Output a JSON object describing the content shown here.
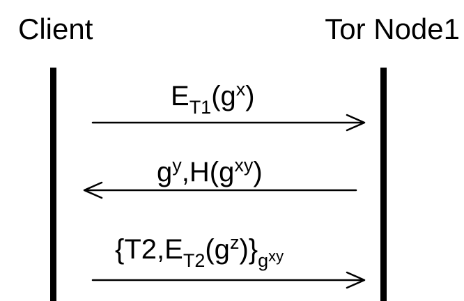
{
  "participants": {
    "client": "Client",
    "node": "Tor Node1"
  },
  "messages": [
    {
      "direction": "client-to-node",
      "parts": {
        "a": "E",
        "a_sub": "T1",
        "b": "(g",
        "b_sup": "x",
        "c": ")"
      }
    },
    {
      "direction": "node-to-client",
      "parts": {
        "a": "g",
        "a_sup": "y",
        "b": ",H(g",
        "b_sup": "xy",
        "c": ")"
      }
    },
    {
      "direction": "client-to-node",
      "parts": {
        "a": "{T2,E",
        "a_sub": "T2",
        "b": "(g",
        "b_sup": "z",
        "c": ")}",
        "c_sub": "g",
        "c_subsup": "xy"
      }
    }
  ],
  "colors": {
    "foreground": "#000000",
    "background": "#ffffff"
  }
}
